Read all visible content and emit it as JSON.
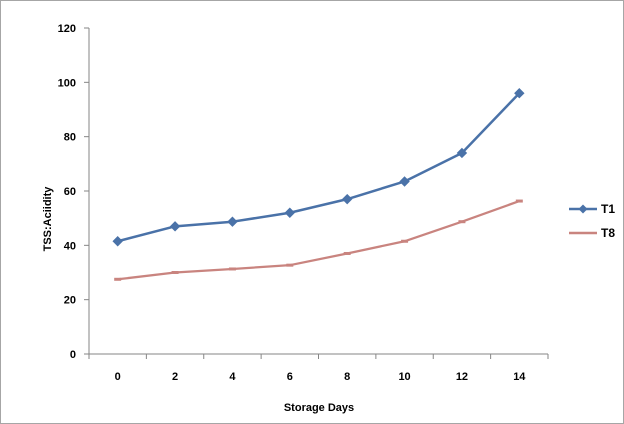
{
  "chart_data": {
    "type": "line",
    "title": "",
    "xlabel": "Storage Days",
    "ylabel": "TSS:Aciidity",
    "x": [
      0,
      2,
      4,
      6,
      8,
      10,
      12,
      14
    ],
    "x_tick_labels": [
      "0",
      "2",
      "4",
      "6",
      "8",
      "10",
      "12",
      "14"
    ],
    "ylim": [
      0,
      120
    ],
    "y_ticks": [
      0,
      20,
      40,
      60,
      80,
      100,
      120
    ],
    "y_tick_labels": [
      "0",
      "20",
      "40",
      "60",
      "80",
      "100",
      "120"
    ],
    "grid": false,
    "legend_position": "right",
    "series": [
      {
        "name": "T1",
        "color": "#4a72a8",
        "marker": "diamond",
        "values": [
          41.5,
          47,
          48.7,
          52,
          57,
          63.5,
          74,
          96
        ]
      },
      {
        "name": "T8",
        "color": "#c9847f",
        "marker": "dash",
        "values": [
          27.5,
          30,
          31.3,
          32.7,
          37,
          41.5,
          48.7,
          56.3
        ]
      }
    ]
  }
}
